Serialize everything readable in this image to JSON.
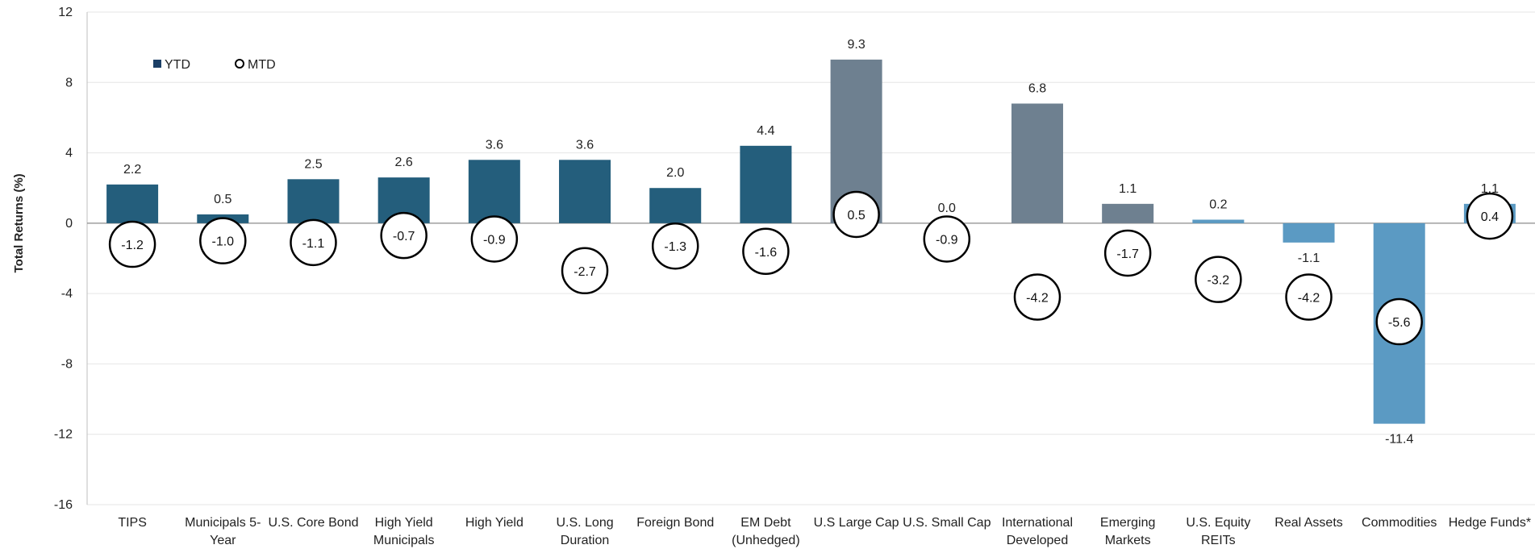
{
  "chart_data": {
    "type": "bar",
    "ylabel": "Total Returns (%)",
    "ylim": [
      -16,
      12
    ],
    "yticks": [
      12,
      8,
      4,
      0,
      -4,
      -8,
      -12,
      -16
    ],
    "categories": [
      [
        "TIPS"
      ],
      [
        "Municipals 5-",
        "Year"
      ],
      [
        "U.S. Core Bond"
      ],
      [
        "High Yield",
        "Municipals"
      ],
      [
        "High Yield"
      ],
      [
        "U.S. Long",
        "Duration"
      ],
      [
        "Foreign Bond"
      ],
      [
        "EM Debt",
        "(Unhedged)"
      ],
      [
        "U.S Large Cap"
      ],
      [
        "U.S. Small Cap"
      ],
      [
        "International",
        "Developed"
      ],
      [
        "Emerging",
        "Markets"
      ],
      [
        "U.S. Equity",
        "REITs"
      ],
      [
        "Real Assets"
      ],
      [
        "Commodities"
      ],
      [
        "Hedge Funds*"
      ]
    ],
    "series": [
      {
        "name": "YTD",
        "values": [
          2.2,
          0.5,
          2.5,
          2.6,
          3.6,
          3.6,
          2.0,
          4.4,
          9.3,
          0.0,
          6.8,
          1.1,
          0.2,
          -1.1,
          -11.4,
          1.1
        ],
        "labels": [
          "2.2",
          "0.5",
          "2.5",
          "2.6",
          "3.6",
          "3.6",
          "2.0",
          "4.4",
          "9.3",
          "0.0",
          "6.8",
          "1.1",
          "0.2",
          "-1.1",
          "-11.4",
          "1.1"
        ]
      },
      {
        "name": "MTD",
        "values": [
          -1.2,
          -1.0,
          -1.1,
          -0.7,
          -0.9,
          -2.7,
          -1.3,
          -1.6,
          0.5,
          -0.9,
          -4.2,
          -1.7,
          -3.2,
          -4.2,
          -5.6,
          0.4
        ],
        "labels": [
          "-1.2",
          "-1.0",
          "-1.1",
          "-0.7",
          "-0.9",
          "-2.7",
          "-1.3",
          "-1.6",
          "0.5",
          "-0.9",
          "-4.2",
          "-1.7",
          "-3.2",
          "-4.2",
          "-5.6",
          "0.4"
        ]
      }
    ],
    "bar_colors": [
      "#245e7c",
      "#245e7c",
      "#245e7c",
      "#245e7c",
      "#245e7c",
      "#245e7c",
      "#245e7c",
      "#245e7c",
      "#6e8090",
      "#6e8090",
      "#6e8090",
      "#6e8090",
      "#5b9ac3",
      "#5b9ac3",
      "#5b9ac3",
      "#5b9ac3"
    ],
    "legend": {
      "placement": "top-left",
      "ytd_label": "YTD",
      "mtd_label": "MTD",
      "ytd_color": "#1b3f66"
    },
    "grid": true
  }
}
